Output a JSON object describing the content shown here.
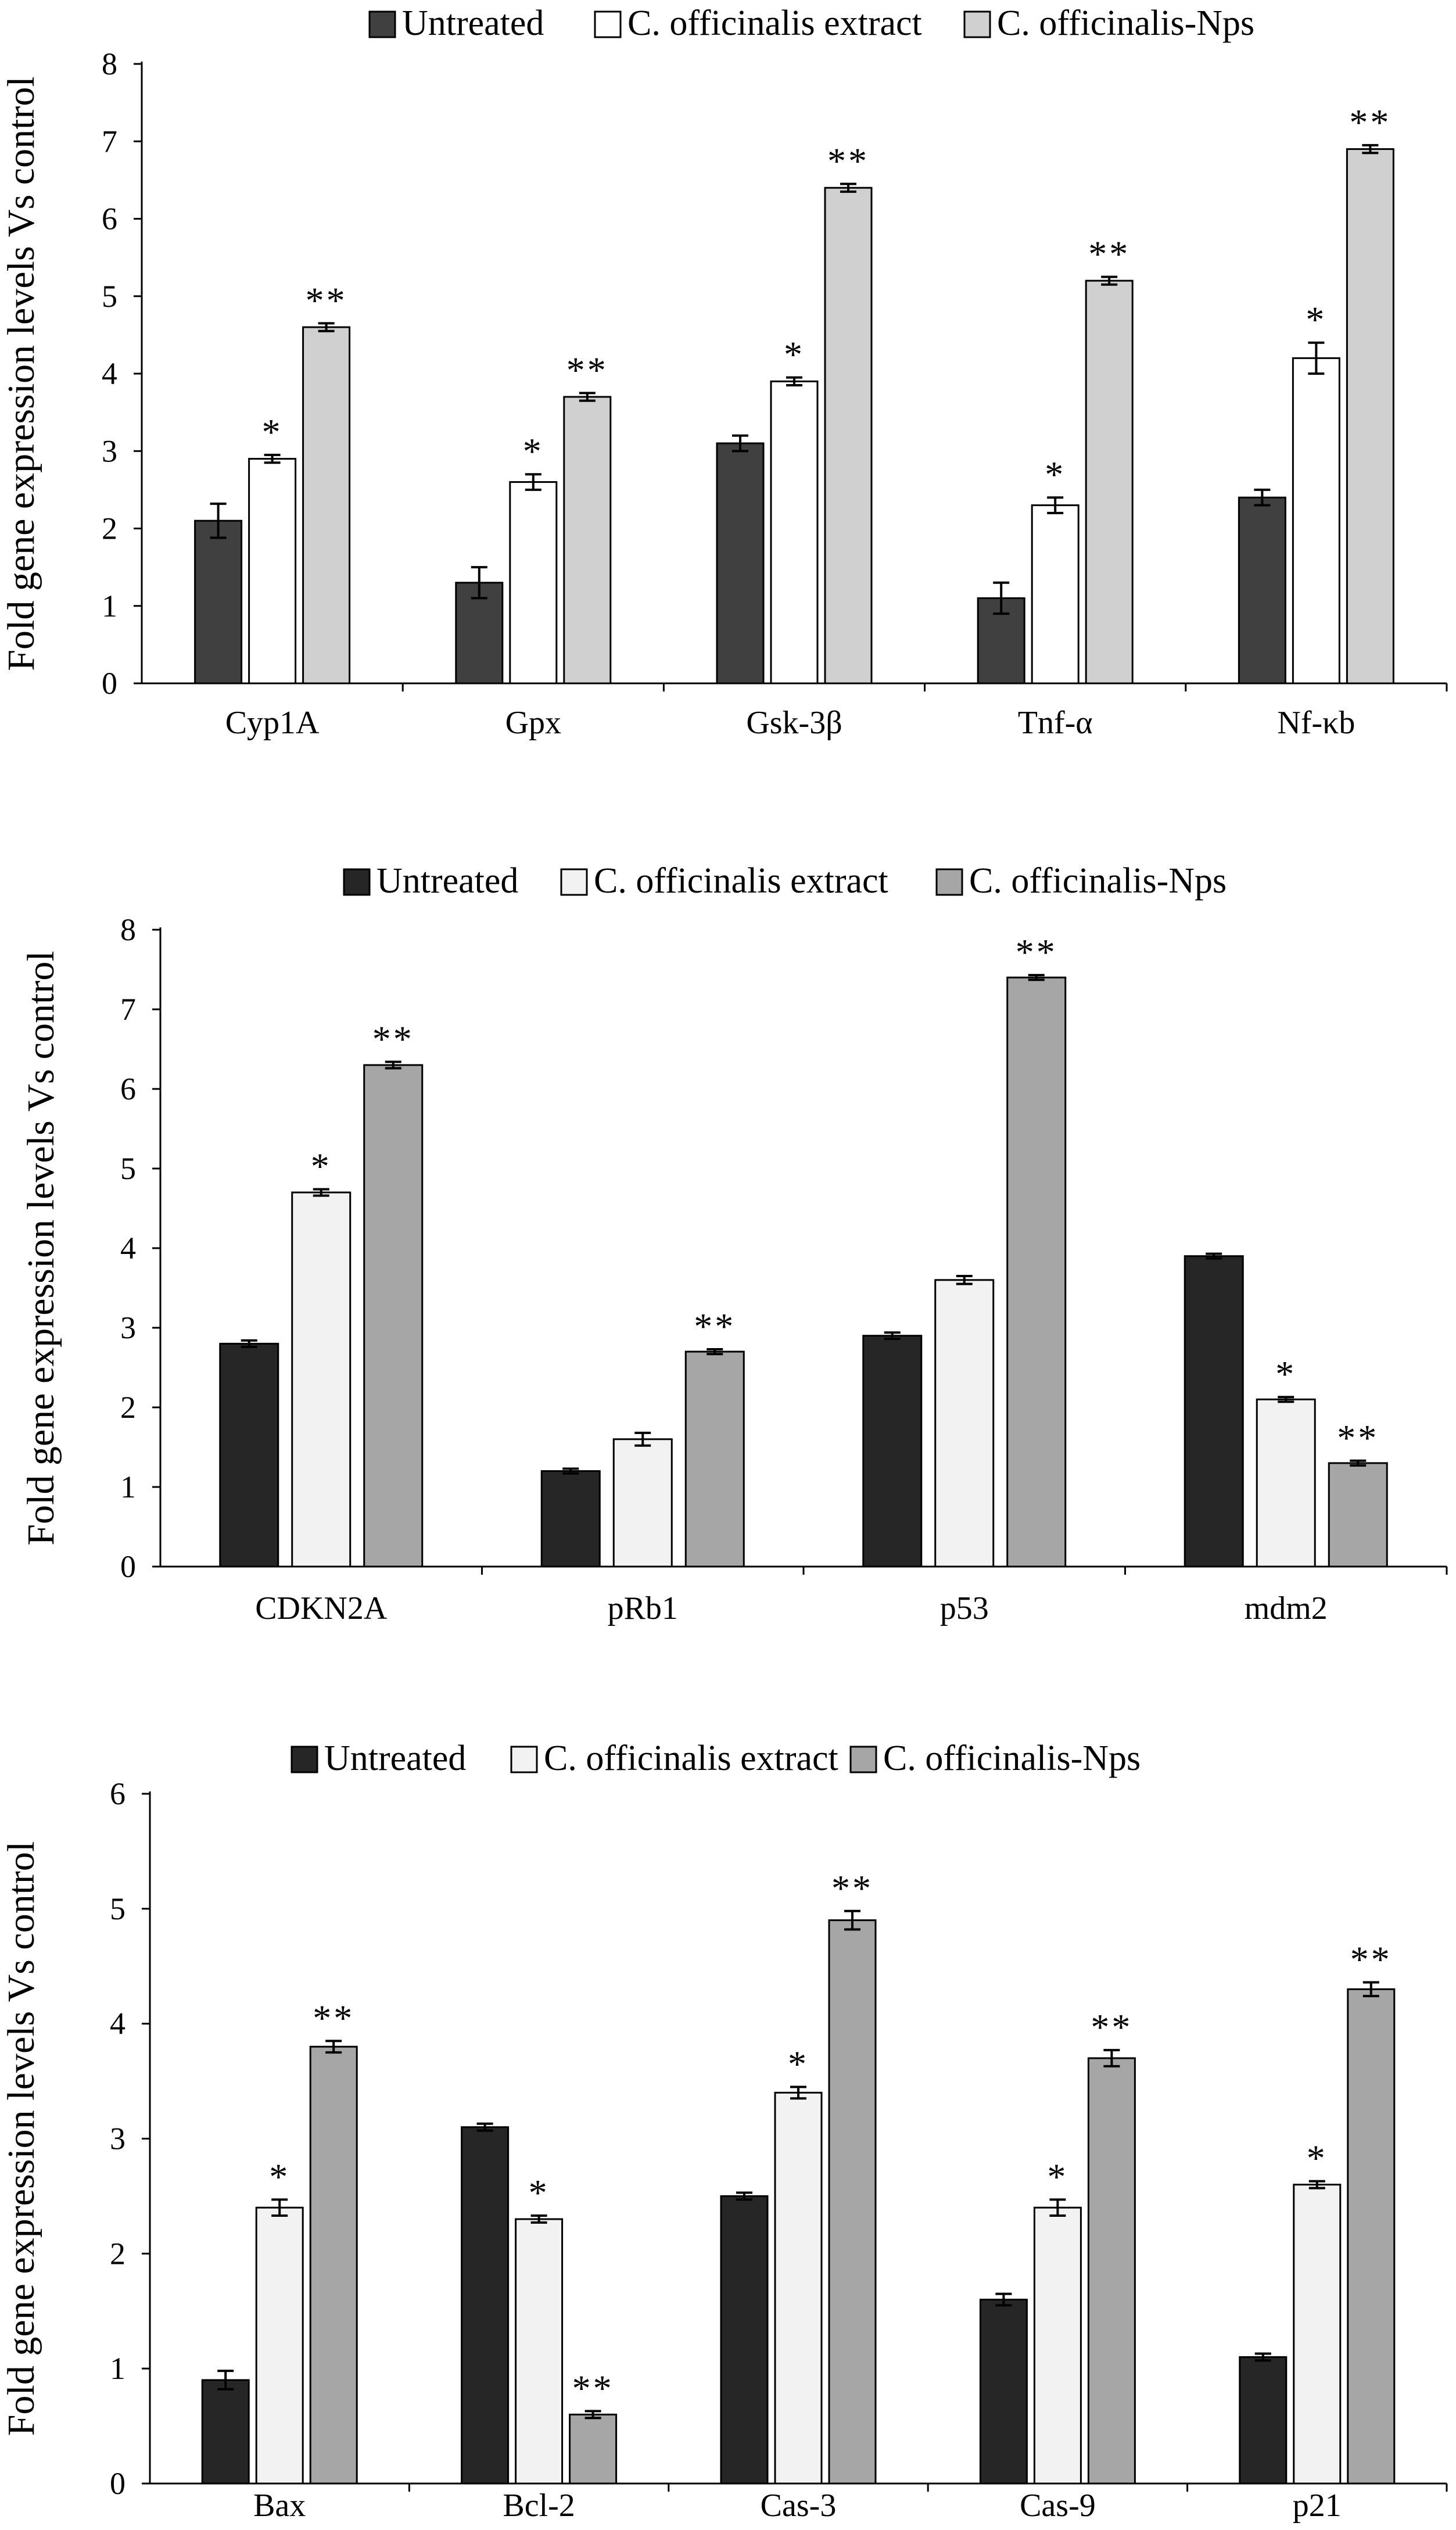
{
  "legend_labels": [
    "Untreated",
    "C. officinalis extract",
    "C. officinalis-Nps"
  ],
  "colors": {
    "panel1": [
      "#404040",
      "#ffffff",
      "#d0d0d0"
    ],
    "panel2": [
      "#262626",
      "#f2f2f2",
      "#a6a6a6"
    ],
    "panel3": [
      "#262626",
      "#f2f2f2",
      "#a6a6a6"
    ]
  },
  "chart_data": [
    {
      "type": "bar",
      "title": "",
      "xlabel": "",
      "ylabel": "Fold gene expression levels Vs control",
      "ylim": [
        0,
        8
      ],
      "yticks": [
        0,
        1,
        2,
        3,
        4,
        5,
        6,
        7,
        8
      ],
      "legend_position": "top",
      "categories": [
        "Cyp1A",
        "Gpx",
        "Gsk-3β",
        "Tnf-α",
        "Nf-κb"
      ],
      "series": [
        {
          "name": "Untreated",
          "values": [
            2.1,
            1.3,
            3.1,
            1.1,
            2.4
          ],
          "errors": [
            0.22,
            0.2,
            0.1,
            0.2,
            0.1
          ],
          "marks": [
            "",
            "",
            "",
            "",
            ""
          ]
        },
        {
          "name": "C. officinalis extract",
          "values": [
            2.9,
            2.6,
            3.9,
            2.3,
            4.2
          ],
          "errors": [
            0.05,
            0.1,
            0.05,
            0.1,
            0.2
          ],
          "marks": [
            "*",
            "*",
            "*",
            "*",
            "*"
          ]
        },
        {
          "name": "C. officinalis-Nps",
          "values": [
            4.6,
            3.7,
            6.4,
            5.2,
            6.9
          ],
          "errors": [
            0.05,
            0.05,
            0.05,
            0.05,
            0.05
          ],
          "marks": [
            "**",
            "**",
            "**",
            "**",
            "**"
          ]
        }
      ]
    },
    {
      "type": "bar",
      "title": "",
      "xlabel": "",
      "ylabel": "Fold gene expression levels Vs control",
      "ylim": [
        0,
        8
      ],
      "yticks": [
        0,
        1,
        2,
        3,
        4,
        5,
        6,
        7,
        8
      ],
      "legend_position": "top",
      "categories": [
        "CDKN2A",
        "pRb1",
        "p53",
        "mdm2"
      ],
      "series": [
        {
          "name": "Untreated",
          "values": [
            2.8,
            1.2,
            2.9,
            3.9
          ],
          "errors": [
            0.04,
            0.03,
            0.04,
            0.03
          ],
          "marks": [
            "",
            "",
            "",
            ""
          ]
        },
        {
          "name": "C. officinalis extract",
          "values": [
            4.7,
            1.6,
            3.6,
            2.1
          ],
          "errors": [
            0.04,
            0.08,
            0.05,
            0.03
          ],
          "marks": [
            "*",
            "",
            "",
            "*"
          ]
        },
        {
          "name": "C. officinalis-Nps",
          "values": [
            6.3,
            2.7,
            7.4,
            1.3
          ],
          "errors": [
            0.04,
            0.03,
            0.03,
            0.03
          ],
          "marks": [
            "**",
            "**",
            "**",
            "**"
          ]
        }
      ]
    },
    {
      "type": "bar",
      "title": "",
      "xlabel": "",
      "ylabel": "Fold gene expression levels Vs control",
      "ylim": [
        0,
        6
      ],
      "yticks": [
        0,
        1,
        2,
        3,
        4,
        5,
        6
      ],
      "legend_position": "top",
      "categories": [
        "Bax",
        "Bcl-2",
        "Cas-3",
        "Cas-9",
        "p21"
      ],
      "series": [
        {
          "name": "Untreated",
          "values": [
            0.9,
            3.1,
            2.5,
            1.6,
            1.1
          ],
          "errors": [
            0.08,
            0.03,
            0.03,
            0.05,
            0.03
          ],
          "marks": [
            "",
            "",
            "",
            "",
            ""
          ]
        },
        {
          "name": "C. officinalis extract",
          "values": [
            2.4,
            2.3,
            3.4,
            2.4,
            2.6
          ],
          "errors": [
            0.07,
            0.03,
            0.05,
            0.07,
            0.03
          ],
          "marks": [
            "*",
            "*",
            "*",
            "*",
            "*"
          ]
        },
        {
          "name": "C. officinalis-Nps",
          "values": [
            3.8,
            0.6,
            4.9,
            3.7,
            4.3
          ],
          "errors": [
            0.05,
            0.03,
            0.08,
            0.07,
            0.06
          ],
          "marks": [
            "**",
            "**",
            "**",
            "**",
            "**"
          ]
        }
      ]
    }
  ]
}
